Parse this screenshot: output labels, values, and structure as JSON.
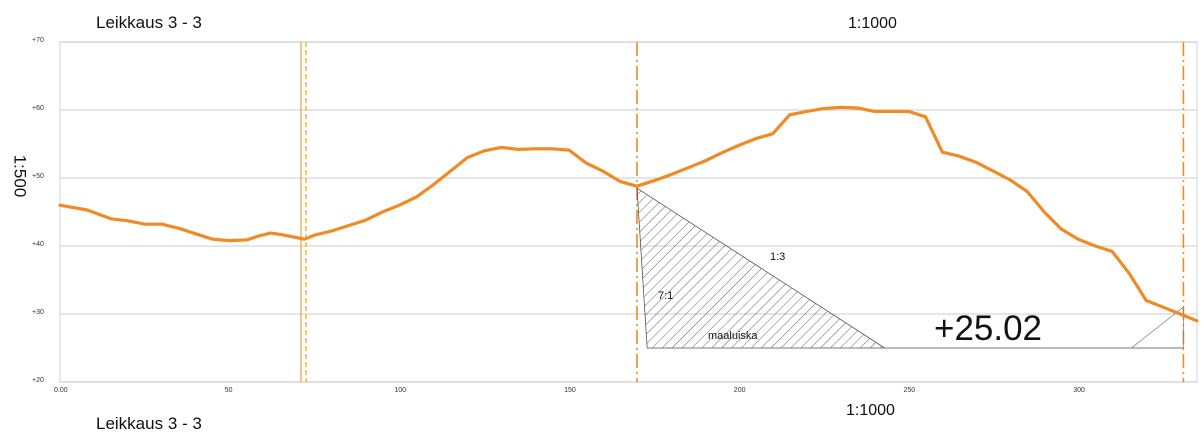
{
  "header": {
    "title": "Leikkaus 3 - 3",
    "scale_horizontal": "1:1000"
  },
  "footer": {
    "title": "Leikkaus 3 - 3",
    "scale_horizontal": "1:1000"
  },
  "side": {
    "scale_vertical": "1:500"
  },
  "annotations": {
    "slope_fill": "1:3",
    "slope_cut": "7:1",
    "embankment": "maaluiska",
    "elevation": "+25.02"
  },
  "colors": {
    "profile": "#f08a24",
    "section_line": "#f08a24",
    "marker_line": "#e8c23a",
    "grid": "#bdbdbd",
    "hatch": "#555555"
  },
  "chart_data": {
    "type": "line",
    "xlim": [
      0,
      335
    ],
    "ylim": [
      20,
      70
    ],
    "x_ticks": [
      "0.00",
      "50",
      "100",
      "150",
      "200",
      "250",
      "300"
    ],
    "y_ticks": [
      "+20",
      "+30",
      "+40",
      "+50",
      "+60",
      "+70"
    ],
    "grid": true,
    "vertical_lines": [
      {
        "x": 71,
        "style": "solid",
        "color": "#f08a24"
      },
      {
        "x": 72.5,
        "style": "dashed",
        "color": "#e8c23a"
      },
      {
        "x": 170,
        "style": "dashdot",
        "color": "#f08a24"
      },
      {
        "x": 331,
        "style": "dashdot",
        "color": "#f08a24"
      }
    ],
    "series": [
      {
        "x": [
          0,
          8,
          15,
          20,
          25,
          30,
          35,
          40,
          45,
          50,
          55,
          58,
          62,
          65,
          70,
          72,
          75,
          80,
          85,
          90,
          95,
          100,
          105,
          110,
          115,
          120,
          125,
          130,
          135,
          140,
          145,
          150,
          155,
          160,
          165,
          170,
          175,
          180,
          185,
          190,
          195,
          200,
          205,
          210,
          215,
          220,
          225,
          230,
          235,
          240,
          245,
          250,
          255,
          260,
          265,
          270,
          275,
          280,
          285,
          290,
          295,
          300,
          305,
          310,
          315,
          320,
          325,
          330,
          335
        ],
        "y": [
          46.0,
          45.3,
          44.0,
          43.7,
          43.2,
          43.2,
          42.6,
          41.8,
          41.0,
          40.8,
          40.9,
          41.4,
          41.9,
          41.7,
          41.2,
          41.0,
          41.6,
          42.2,
          43.0,
          43.8,
          45.0,
          46.0,
          47.2,
          49.0,
          51.0,
          53.0,
          54.0,
          54.5,
          54.2,
          54.3,
          54.3,
          54.1,
          52.2,
          51.0,
          49.5,
          48.8,
          49.6,
          50.5,
          51.5,
          52.5,
          53.7,
          54.8,
          55.8,
          56.5,
          59.3,
          59.8,
          60.2,
          60.4,
          60.3,
          59.8,
          59.8,
          59.8,
          59.0,
          53.8,
          53.2,
          52.3,
          51.0,
          49.7,
          48.0,
          45.0,
          42.5,
          41.0,
          40.0,
          39.2,
          36.0,
          32.0,
          31.0,
          30.0,
          29.0
        ]
      }
    ],
    "hatched_region": [
      [
        170,
        48.5
      ],
      [
        243,
        25
      ],
      [
        173,
        25
      ]
    ],
    "base_line": {
      "y": 25,
      "x": [
        173,
        331
      ]
    }
  }
}
